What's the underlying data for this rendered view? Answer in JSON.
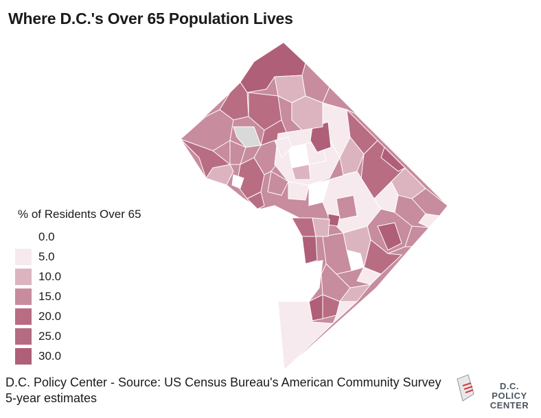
{
  "title": "Where D.C.'s Over 65 Population Lives",
  "legend": {
    "title": "% of Residents Over 65",
    "items": [
      {
        "label": "0.0",
        "color": "#ffffff"
      },
      {
        "label": "5.0",
        "color": "#f6eaee"
      },
      {
        "label": "10.0",
        "color": "#dcb4c0"
      },
      {
        "label": "15.0",
        "color": "#c78c9e"
      },
      {
        "label": "20.0",
        "color": "#b86d83"
      },
      {
        "label": "25.0",
        "color": "#b56c82"
      },
      {
        "label": "30.0",
        "color": "#b05f78"
      }
    ]
  },
  "source": "D.C. Policy Center - Source: US Census Bureau's American Community Survey 5-year estimates",
  "logo": {
    "line1": "D.C. POLICY",
    "line2": "CENTER"
  },
  "map": {
    "colors": {
      "c0": "#ffffff",
      "c5": "#f6eaee",
      "c10": "#dcb4c0",
      "c15": "#c78c9e",
      "c20": "#b86d83",
      "c30": "#b05f78",
      "nodata": "#d9d9d9",
      "stroke": "#ffffff"
    }
  }
}
